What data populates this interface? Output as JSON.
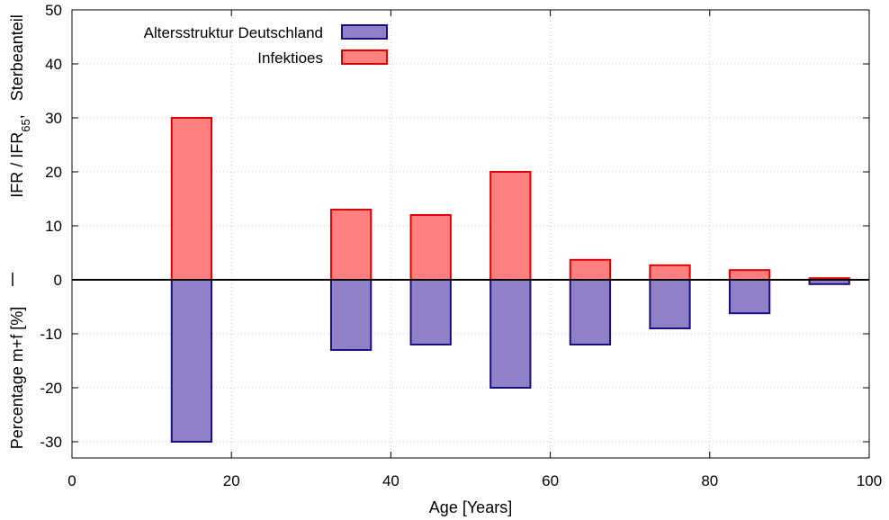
{
  "chart_data": {
    "type": "bar",
    "xlabel": "Age [Years]",
    "ylabel_top": "IFR / IFR",
    "ylabel_top_sub": "65",
    "ylabel_top_suffix": ",   Sterbeanteil",
    "ylabel_bottom": "Percentage m+f [%]",
    "xlim": [
      0,
      100
    ],
    "ylim": [
      -33,
      50
    ],
    "xticks": [
      0,
      20,
      40,
      60,
      80,
      100
    ],
    "yticks": [
      -30,
      -20,
      -10,
      0,
      10,
      20,
      30,
      40,
      50
    ],
    "grid": true,
    "legend_position": "top-left",
    "bar_width": 5,
    "x": [
      15,
      35,
      45,
      55,
      65,
      75,
      85,
      95
    ],
    "series": [
      {
        "name": "Altersstruktur Deutschland",
        "color": "#9080c8",
        "edge": "#1a0f80",
        "values": [
          -30,
          -13,
          -12,
          -20,
          -12,
          -9,
          -6.2,
          -0.8
        ]
      },
      {
        "name": "Infektioes",
        "color": "#ff8080",
        "edge": "#e00000",
        "values": [
          30,
          13,
          12,
          20,
          3.7,
          2.7,
          1.8,
          0.3
        ]
      }
    ]
  }
}
